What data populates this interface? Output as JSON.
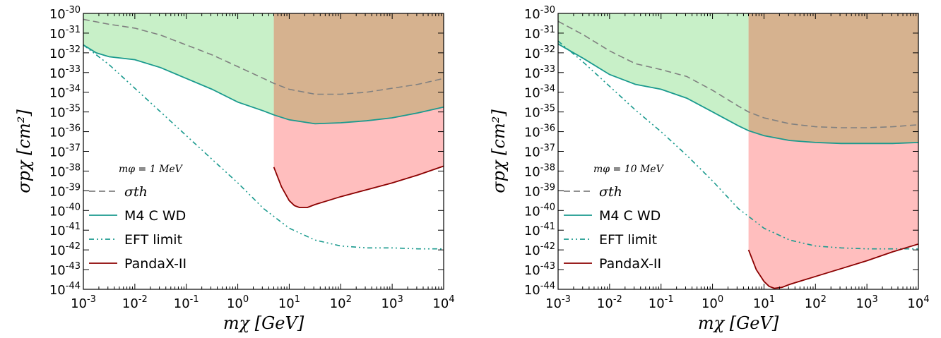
{
  "chart_data": [
    {
      "type": "line",
      "annotation": "mφ = 1 MeV",
      "xlabel": "mχ [GeV]",
      "ylabel": "σpχ [cm²]",
      "x_scale": "log",
      "y_scale": "log",
      "xlim_exp": [
        -3,
        4
      ],
      "ylim_exp": [
        -44,
        -30
      ],
      "x_tick_labels": [
        "10-3",
        "10-2",
        "10-1",
        "100",
        "101",
        "102",
        "103",
        "104"
      ],
      "y_tick_labels": [
        "10-30",
        "10-31",
        "10-32",
        "10-33",
        "10-34",
        "10-35",
        "10-36",
        "10-37",
        "10-38",
        "10-39",
        "10-40",
        "10-41",
        "10-42",
        "10-43",
        "10-44"
      ],
      "legend": {
        "placement": "left-bottom",
        "entries": [
          {
            "label": "σth",
            "style": "dashed",
            "color": "#808080"
          },
          {
            "label": "M4 C WD",
            "style": "solid",
            "color": "#1a9a8e"
          },
          {
            "label": "EFT limit",
            "style": "dashdot",
            "color": "#1a9a8e"
          },
          {
            "label": "PandaX-II",
            "style": "solid",
            "color": "#8b0000"
          }
        ]
      },
      "series": [
        {
          "name": "σth",
          "x_log": [
            -3,
            -2.5,
            -2,
            -1.5,
            -1,
            -0.5,
            0,
            0.5,
            0.7,
            1,
            1.5,
            2,
            2.5,
            3,
            3.5,
            4
          ],
          "y_log": [
            -30.3,
            -30.55,
            -30.75,
            -31.1,
            -31.6,
            -32.1,
            -32.7,
            -33.3,
            -33.55,
            -33.85,
            -34.1,
            -34.1,
            -34.0,
            -33.8,
            -33.6,
            -33.3
          ]
        },
        {
          "name": "M4 C WD",
          "x_log": [
            -3,
            -2.75,
            -2.5,
            -2,
            -1.5,
            -1,
            -0.5,
            0,
            0.5,
            0.7,
            1,
            1.5,
            2,
            2.5,
            3,
            3.5,
            4
          ],
          "y_log": [
            -31.6,
            -32.0,
            -32.2,
            -32.35,
            -32.75,
            -33.3,
            -33.85,
            -34.5,
            -34.95,
            -35.15,
            -35.4,
            -35.6,
            -35.55,
            -35.45,
            -35.3,
            -35.05,
            -34.75
          ]
        },
        {
          "name": "EFT limit",
          "x_log": [
            -3,
            -2.5,
            -2,
            -1.5,
            -1,
            -0.5,
            0,
            0.5,
            1,
            1.5,
            2,
            2.5,
            3,
            3.5,
            4
          ],
          "y_log": [
            -31.6,
            -32.6,
            -33.8,
            -35.0,
            -36.2,
            -37.4,
            -38.6,
            -39.9,
            -40.9,
            -41.5,
            -41.8,
            -41.9,
            -41.9,
            -41.95,
            -41.95
          ]
        },
        {
          "name": "PandaX-II",
          "x_log": [
            0.7,
            0.85,
            1.0,
            1.1,
            1.2,
            1.35,
            1.5,
            1.75,
            2,
            2.5,
            3,
            3.5,
            4
          ],
          "y_log": [
            -37.8,
            -38.8,
            -39.5,
            -39.75,
            -39.85,
            -39.85,
            -39.7,
            -39.5,
            -39.3,
            -38.95,
            -38.6,
            -38.2,
            -37.75
          ]
        }
      ],
      "regions": [
        {
          "name": "WD excluded (green)",
          "color": "#c8f0c8",
          "x_log_range": [
            -3,
            0.7
          ],
          "bounded_by": "M4 C WD"
        },
        {
          "name": "overlap (brown)",
          "color": "#d6b28f",
          "x_log_range": [
            0.7,
            4
          ],
          "bounded_by": "M4 C WD"
        },
        {
          "name": "PandaX-II excluded (pink)",
          "color": "#ffbebe",
          "x_log_range": [
            0.7,
            4
          ],
          "between": [
            "PandaX-II",
            "M4 C WD"
          ]
        }
      ]
    },
    {
      "type": "line",
      "annotation": "mφ = 10 MeV",
      "xlabel": "mχ [GeV]",
      "ylabel": "σpχ [cm²]",
      "x_scale": "log",
      "y_scale": "log",
      "xlim_exp": [
        -3,
        4
      ],
      "ylim_exp": [
        -44,
        -30
      ],
      "x_tick_labels": [
        "10-3",
        "10-2",
        "10-1",
        "100",
        "101",
        "102",
        "103",
        "104"
      ],
      "y_tick_labels": [
        "10-30",
        "10-31",
        "10-32",
        "10-33",
        "10-34",
        "10-35",
        "10-36",
        "10-37",
        "10-38",
        "10-39",
        "10-40",
        "10-41",
        "10-42",
        "10-43",
        "10-44"
      ],
      "legend": {
        "placement": "left-bottom",
        "entries": [
          {
            "label": "σth",
            "style": "dashed",
            "color": "#808080"
          },
          {
            "label": "M4 C WD",
            "style": "solid",
            "color": "#1a9a8e"
          },
          {
            "label": "EFT limit",
            "style": "dashdot",
            "color": "#1a9a8e"
          },
          {
            "label": "PandaX-II",
            "style": "solid",
            "color": "#8b0000"
          }
        ]
      },
      "series": [
        {
          "name": "σth",
          "x_log": [
            -3,
            -2.5,
            -2,
            -1.5,
            -1,
            -0.5,
            0,
            0.5,
            0.7,
            1,
            1.5,
            2,
            2.5,
            3,
            3.5,
            4
          ],
          "y_log": [
            -30.4,
            -31.1,
            -31.9,
            -32.55,
            -32.85,
            -33.2,
            -33.9,
            -34.7,
            -35.0,
            -35.3,
            -35.6,
            -35.75,
            -35.8,
            -35.8,
            -35.75,
            -35.65
          ]
        },
        {
          "name": "M4 C WD",
          "x_log": [
            -3,
            -2.5,
            -2,
            -1.5,
            -1,
            -0.5,
            0,
            0.5,
            0.7,
            1,
            1.5,
            2,
            2.5,
            3,
            3.5,
            4
          ],
          "y_log": [
            -31.55,
            -32.3,
            -33.1,
            -33.6,
            -33.85,
            -34.3,
            -35.0,
            -35.7,
            -35.95,
            -36.2,
            -36.45,
            -36.55,
            -36.6,
            -36.6,
            -36.6,
            -36.55
          ]
        },
        {
          "name": "EFT limit",
          "x_log": [
            -3,
            -2.5,
            -2,
            -1.5,
            -1,
            -0.5,
            0,
            0.5,
            1,
            1.5,
            2,
            2.5,
            3,
            3.5,
            4
          ],
          "y_log": [
            -31.4,
            -32.5,
            -33.7,
            -34.9,
            -36.0,
            -37.2,
            -38.5,
            -39.9,
            -40.9,
            -41.5,
            -41.8,
            -41.9,
            -41.95,
            -41.95,
            -41.95
          ]
        },
        {
          "name": "PandaX-II",
          "x_log": [
            0.7,
            0.85,
            1.0,
            1.1,
            1.2,
            1.35,
            1.5,
            1.75,
            2,
            2.5,
            3,
            3.5,
            4
          ],
          "y_log": [
            -42.0,
            -43.0,
            -43.6,
            -43.85,
            -43.95,
            -43.9,
            -43.75,
            -43.55,
            -43.35,
            -42.95,
            -42.55,
            -42.1,
            -41.7
          ]
        }
      ],
      "regions": [
        {
          "name": "WD excluded (green)",
          "color": "#c8f0c8",
          "x_log_range": [
            -3,
            0.7
          ],
          "bounded_by": "M4 C WD"
        },
        {
          "name": "overlap (brown)",
          "color": "#d6b28f",
          "x_log_range": [
            0.7,
            4
          ],
          "bounded_by": "M4 C WD"
        },
        {
          "name": "PandaX-II excluded (pink)",
          "color": "#ffbebe",
          "x_log_range": [
            0.7,
            4
          ],
          "between": [
            "PandaX-II",
            "M4 C WD"
          ]
        }
      ]
    }
  ]
}
